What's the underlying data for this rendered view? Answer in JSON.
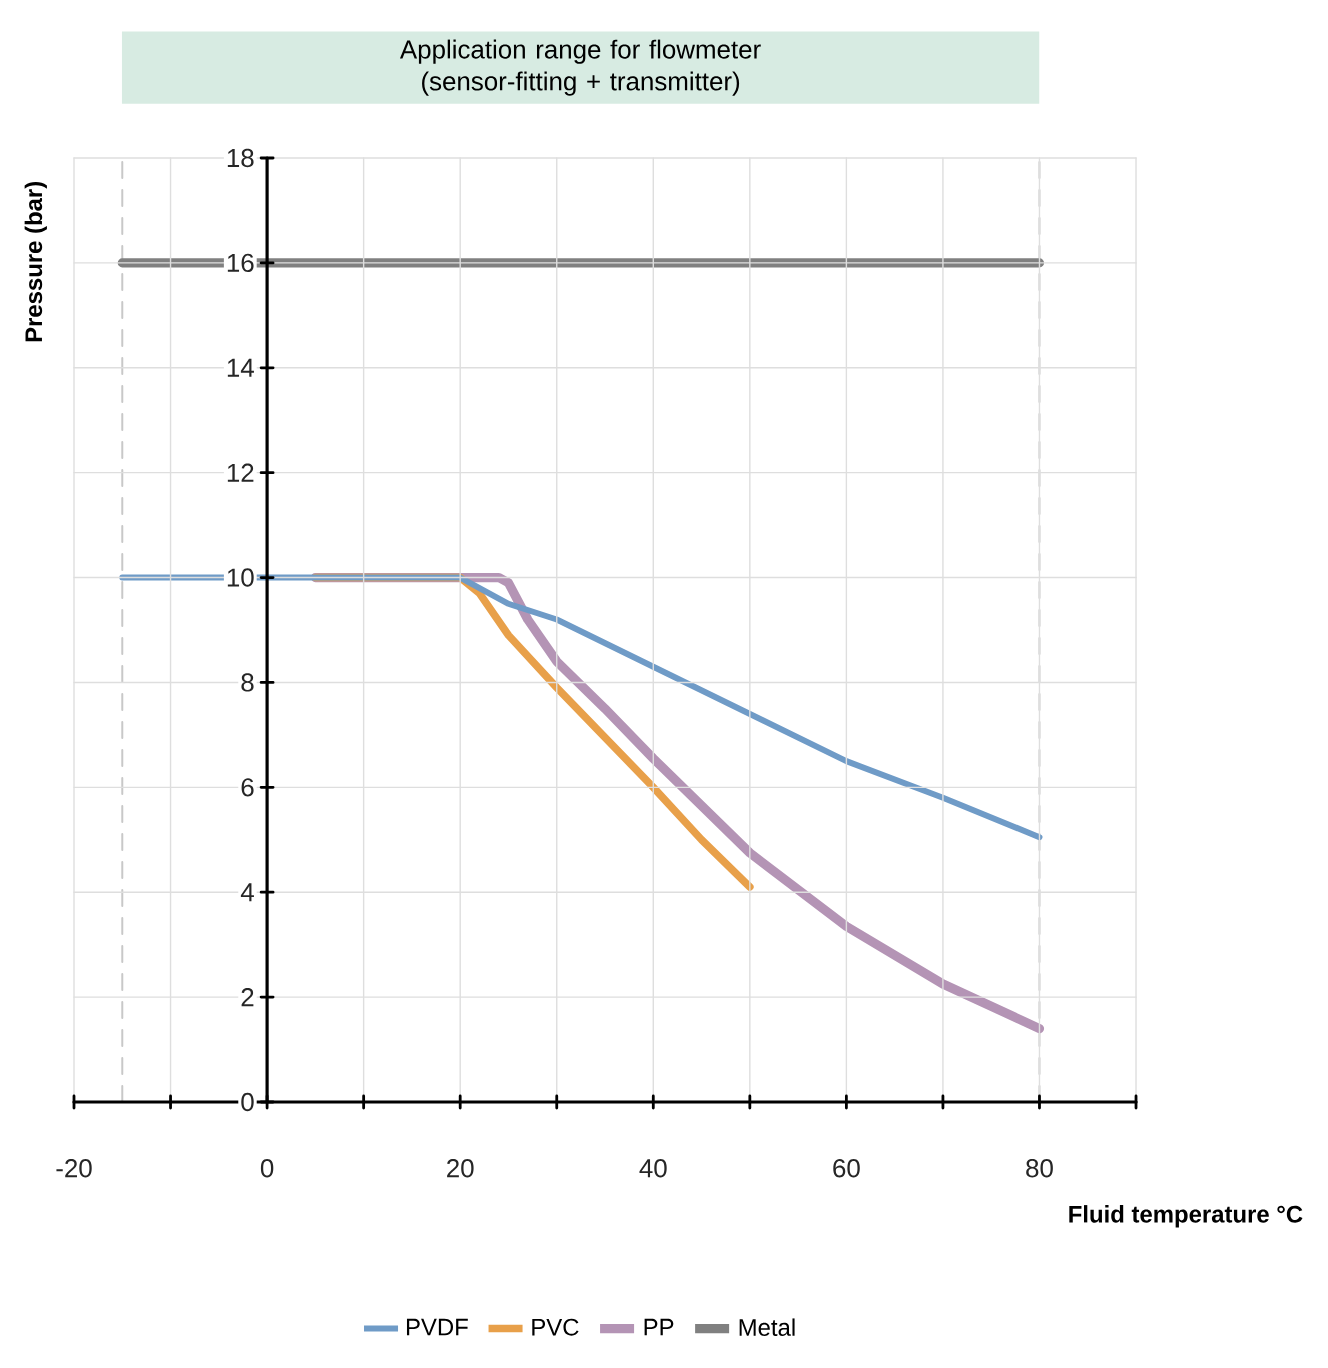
{
  "chart_data": {
    "type": "line",
    "title": "Application range for flowmeter",
    "subtitle": "(sensor-fitting + transmitter)",
    "xlabel": "Fluid temperature °C",
    "ylabel": "Pressure (bar)",
    "xlim": [
      -20,
      90
    ],
    "xticks": [
      -20,
      {
        "value": -10,
        "label": null
      },
      0,
      {
        "value": 10,
        "label": null
      },
      20,
      {
        "value": 30,
        "label": null
      },
      40,
      {
        "value": 50,
        "label": null
      },
      60,
      {
        "value": 70,
        "label": null
      },
      80,
      {
        "value": 90,
        "label": null
      }
    ],
    "ylim": [
      0,
      18
    ],
    "yticks": [
      0,
      2,
      4,
      6,
      8,
      10,
      12,
      14,
      16,
      18
    ],
    "grid": true,
    "legend": "bottom",
    "line_style": "solid",
    "marker": "none",
    "ref_lines": [
      {
        "axis": "x",
        "value": -15,
        "color": "#c8c8c8",
        "line_style": "dashed"
      },
      {
        "axis": "x",
        "value": 80,
        "color": "#c8c8c8",
        "line_style": "dashed"
      }
    ],
    "series": [
      {
        "name": "PVDF",
        "color": "#6f9bc7",
        "x": [
          -15,
          20,
          22,
          25,
          30,
          40,
          50,
          60,
          70,
          80
        ],
        "values": [
          10,
          10,
          9.8,
          9.5,
          9.2,
          8.3,
          7.4,
          6.5,
          5.8,
          5.05
        ]
      },
      {
        "name": "PVC",
        "color": "#e8a04a",
        "x": [
          5,
          20,
          22,
          25,
          30,
          35,
          40,
          45,
          50
        ],
        "values": [
          10,
          10,
          9.7,
          8.9,
          7.9,
          6.95,
          6.0,
          5.0,
          4.1
        ]
      },
      {
        "name": "PP",
        "color": "#b494b5",
        "x": [
          5,
          20,
          24,
          25,
          27,
          30,
          35,
          40,
          50,
          60,
          70,
          80
        ],
        "values": [
          10,
          10,
          10,
          9.9,
          9.2,
          8.4,
          7.5,
          6.55,
          4.75,
          3.35,
          2.25,
          1.4
        ]
      },
      {
        "name": "Metal",
        "color": "#808080",
        "x": [
          -15,
          80
        ],
        "values": [
          16,
          16
        ]
      }
    ]
  }
}
